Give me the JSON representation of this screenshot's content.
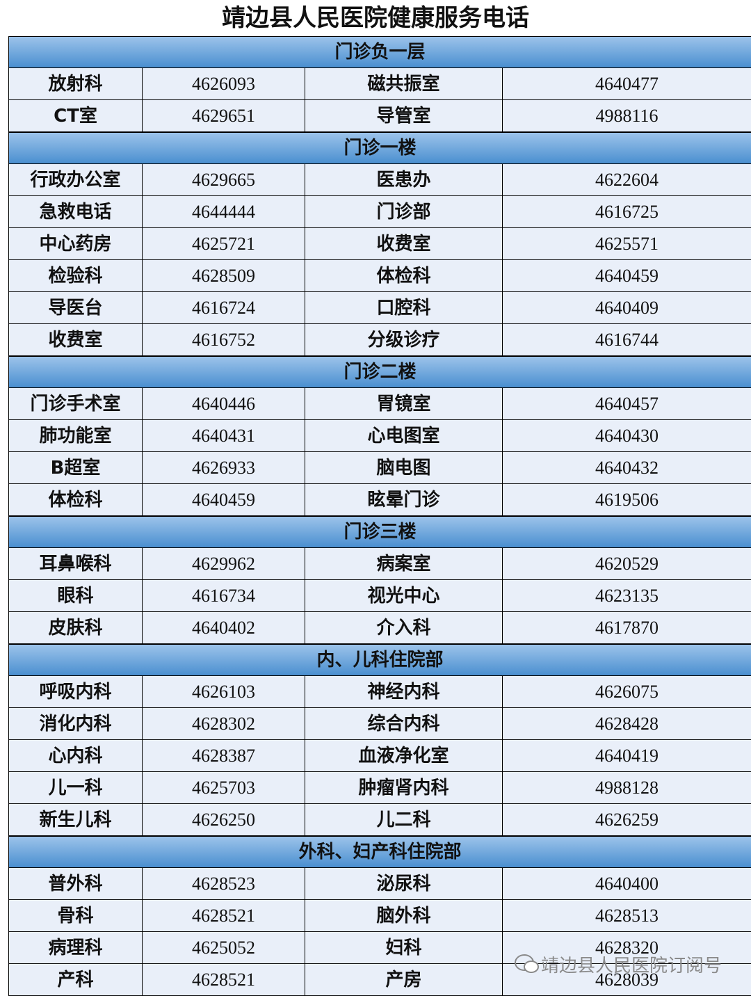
{
  "header": {
    "title": "靖边县人民医院健康服务电话"
  },
  "sections": [
    {
      "title": "门诊负一层",
      "rows": [
        [
          "放射科",
          "4626093",
          "磁共振室",
          "4640477"
        ],
        [
          "CT室",
          "4629651",
          "导管室",
          "4988116"
        ]
      ]
    },
    {
      "title": "门诊一楼",
      "rows": [
        [
          "行政办公室",
          "4629665",
          "医患办",
          "4622604"
        ],
        [
          "急救电话",
          "4644444",
          "门诊部",
          "4616725"
        ],
        [
          "中心药房",
          "4625721",
          "收费室",
          "4625571"
        ],
        [
          "检验科",
          "4628509",
          "体检科",
          "4640459"
        ],
        [
          "导医台",
          "4616724",
          "口腔科",
          "4640409"
        ],
        [
          "收费室",
          "4616752",
          "分级诊疗",
          "4616744"
        ]
      ]
    },
    {
      "title": "门诊二楼",
      "rows": [
        [
          "门诊手术室",
          "4640446",
          "胃镜室",
          "4640457"
        ],
        [
          "肺功能室",
          "4640431",
          "心电图室",
          "4640430"
        ],
        [
          "B超室",
          "4626933",
          "脑电图",
          "4640432"
        ],
        [
          "体检科",
          "4640459",
          "眩晕门诊",
          "4619506"
        ]
      ]
    },
    {
      "title": "门诊三楼",
      "rows": [
        [
          "耳鼻喉科",
          "4629962",
          "病案室",
          "4620529"
        ],
        [
          "眼科",
          "4616734",
          "视光中心",
          "4623135"
        ],
        [
          "皮肤科",
          "4640402",
          "介入科",
          "4617870"
        ]
      ]
    },
    {
      "title": "内、儿科住院部",
      "rows": [
        [
          "呼吸内科",
          "4626103",
          "神经内科",
          "4626075"
        ],
        [
          "消化内科",
          "4628302",
          "综合内科",
          "4628428"
        ],
        [
          "心内科",
          "4628387",
          "血液净化室",
          "4640419"
        ],
        [
          "儿一科",
          "4625703",
          "肿瘤肾内科",
          "4988128"
        ],
        [
          "新生儿科",
          "4626250",
          "儿二科",
          "4626259"
        ]
      ]
    },
    {
      "title": "外科、妇产科住院部",
      "rows": [
        [
          "普外科",
          "4628523",
          "泌尿科",
          "4640400"
        ],
        [
          "骨科",
          "4628521",
          "脑外科",
          "4628513"
        ],
        [
          "病理科",
          "4625052",
          "妇科",
          "4628320"
        ],
        [
          "产科",
          "4628521",
          "产房",
          "4628039"
        ]
      ]
    }
  ],
  "watermark": "靖边县人民医院订阅号"
}
